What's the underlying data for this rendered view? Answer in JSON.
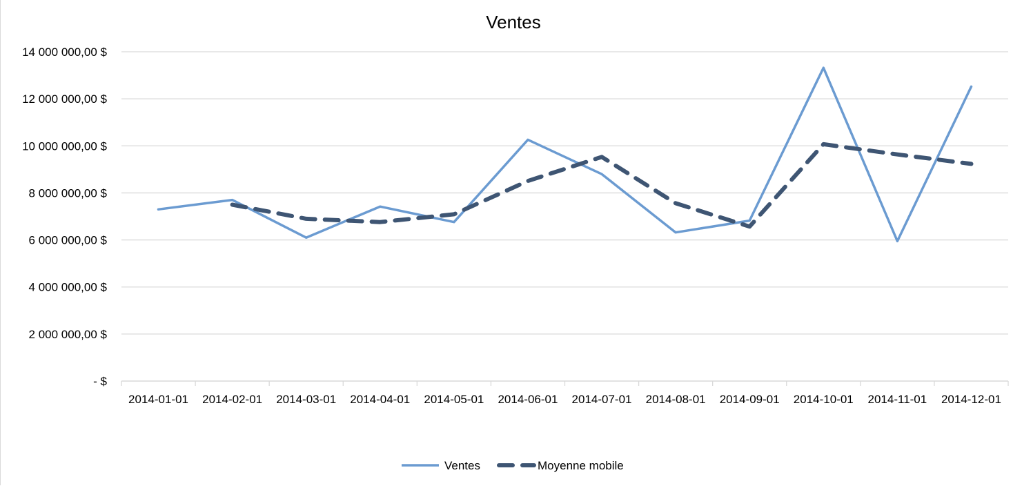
{
  "chart_data": {
    "type": "line",
    "title": "Ventes",
    "xlabel": "",
    "ylabel": "",
    "categories": [
      "2014-01-01",
      "2014-02-01",
      "2014-03-01",
      "2014-04-01",
      "2014-05-01",
      "2014-06-01",
      "2014-07-01",
      "2014-08-01",
      "2014-09-01",
      "2014-10-01",
      "2014-11-01",
      "2014-12-01"
    ],
    "yticks": [
      {
        "value": 0,
        "label": "-   $"
      },
      {
        "value": 2000000,
        "label": "2 000 000,00 $"
      },
      {
        "value": 4000000,
        "label": "4 000 000,00 $"
      },
      {
        "value": 6000000,
        "label": "6 000 000,00 $"
      },
      {
        "value": 8000000,
        "label": "8 000 000,00 $"
      },
      {
        "value": 10000000,
        "label": "10 000 000,00 $"
      },
      {
        "value": 12000000,
        "label": "12 000 000,00 $"
      },
      {
        "value": 14000000,
        "label": "14 000 000,00 $"
      }
    ],
    "ylim": [
      0,
      14000000
    ],
    "grid": true,
    "legend_position": "bottom",
    "series": [
      {
        "name": "Ventes",
        "style": "solid",
        "color": "#6b9bd1",
        "values": [
          7300000,
          7700000,
          6100000,
          7420000,
          6760000,
          10260000,
          8800000,
          6320000,
          6820000,
          13320000,
          5950000,
          12520000
        ]
      },
      {
        "name": "Moyenne mobile",
        "style": "dashed",
        "color": "#3e5573",
        "values": [
          null,
          7500000,
          6900000,
          6760000,
          7090000,
          8510000,
          9530000,
          7560000,
          6570000,
          10070000,
          9635000,
          9235000
        ]
      }
    ]
  }
}
